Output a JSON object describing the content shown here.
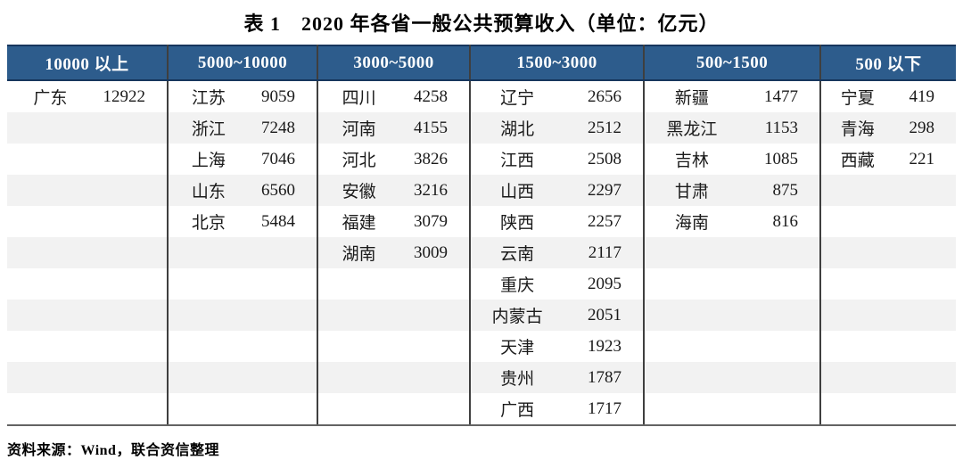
{
  "title": "表 1　2020 年各省一般公共预算收入（单位：亿元）",
  "source": "资料来源：Wind，联合资信整理",
  "colors": {
    "header_bg": "#2d5c8c",
    "header_border": "#17365d",
    "stripe": "#f2f2f2",
    "divider": "#3f3f3f",
    "header_text": "#ffffff"
  },
  "table": {
    "row_count": 11,
    "columns": [
      {
        "header": "10000 以上",
        "rows": [
          {
            "name": "广东",
            "value": "12922"
          }
        ]
      },
      {
        "header": "5000~10000",
        "rows": [
          {
            "name": "江苏",
            "value": "9059"
          },
          {
            "name": "浙江",
            "value": "7248"
          },
          {
            "name": "上海",
            "value": "7046"
          },
          {
            "name": "山东",
            "value": "6560"
          },
          {
            "name": "北京",
            "value": "5484"
          }
        ]
      },
      {
        "header": "3000~5000",
        "rows": [
          {
            "name": "四川",
            "value": "4258"
          },
          {
            "name": "河南",
            "value": "4155"
          },
          {
            "name": "河北",
            "value": "3826"
          },
          {
            "name": "安徽",
            "value": "3216"
          },
          {
            "name": "福建",
            "value": "3079"
          },
          {
            "name": "湖南",
            "value": "3009"
          }
        ]
      },
      {
        "header": "1500~3000",
        "rows": [
          {
            "name": "辽宁",
            "value": "2656"
          },
          {
            "name": "湖北",
            "value": "2512"
          },
          {
            "name": "江西",
            "value": "2508"
          },
          {
            "name": "山西",
            "value": "2297"
          },
          {
            "name": "陕西",
            "value": "2257"
          },
          {
            "name": "云南",
            "value": "2117"
          },
          {
            "name": "重庆",
            "value": "2095"
          },
          {
            "name": "内蒙古",
            "value": "2051"
          },
          {
            "name": "天津",
            "value": "1923"
          },
          {
            "name": "贵州",
            "value": "1787"
          },
          {
            "name": "广西",
            "value": "1717"
          }
        ]
      },
      {
        "header": "500~1500",
        "rows": [
          {
            "name": "新疆",
            "value": "1477"
          },
          {
            "name": "黑龙江",
            "value": "1153"
          },
          {
            "name": "吉林",
            "value": "1085"
          },
          {
            "name": "甘肃",
            "value": "875"
          },
          {
            "name": "海南",
            "value": "816"
          }
        ]
      },
      {
        "header": "500 以下",
        "rows": [
          {
            "name": "宁夏",
            "value": "419"
          },
          {
            "name": "青海",
            "value": "298"
          },
          {
            "name": "西藏",
            "value": "221"
          }
        ]
      }
    ]
  }
}
